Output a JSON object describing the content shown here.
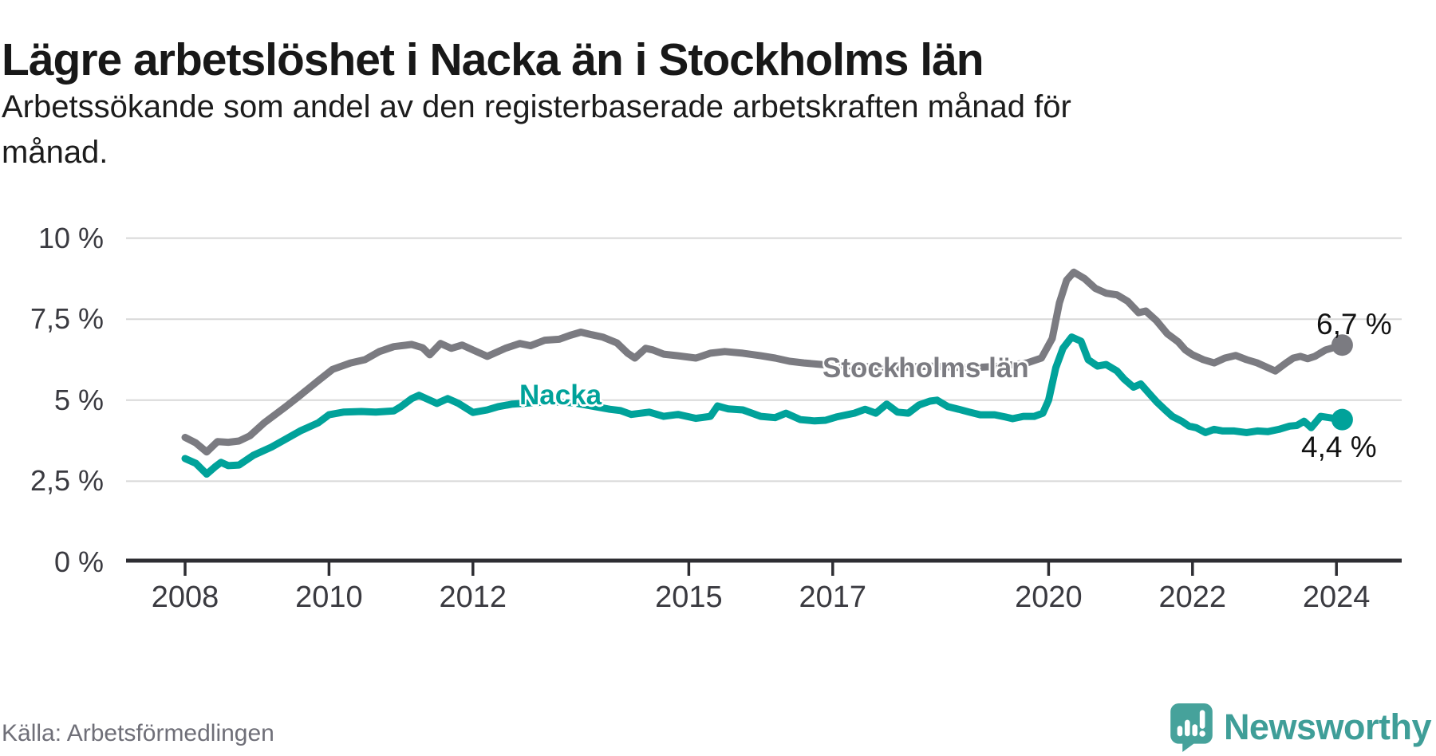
{
  "title": "Lägre arbetslöshet i Nacka än i Stockholms län",
  "subtitle_lines": [
    "Arbetssökande som andel av den registerbaserade arbetskraften månad för",
    "månad."
  ],
  "source": "Källa: Arbetsförmedlingen",
  "logo": {
    "text": "Newsworthy",
    "icon": "newsworthy-speech-bubble-chart-icon",
    "color": "#3f9e98"
  },
  "colors": {
    "nacka": "#00a29a",
    "stockholm": "#7b7b81",
    "grid": "#d8d8d8",
    "axis": "#2e2e33",
    "text": "#3a3a40"
  },
  "chart_data": {
    "type": "line",
    "title": "Lägre arbetslöshet i Nacka än i Stockholms län",
    "subtitle": "Arbetssökande som andel av den registerbaserade arbetskraften månad för månad.",
    "unit": "%",
    "ylim": [
      0,
      10
    ],
    "xlim": [
      2008,
      2024.3
    ],
    "grid": "horizontal",
    "y_ticks": [
      {
        "label": "10 %",
        "value": 10
      },
      {
        "label": "7,5 %",
        "value": 7.5
      },
      {
        "label": "5 %",
        "value": 5
      },
      {
        "label": "2,5 %",
        "value": 2.5
      },
      {
        "label": "0 %",
        "value": 0
      }
    ],
    "x_ticks": [
      {
        "label": "2008",
        "value": 2008
      },
      {
        "label": "2010",
        "value": 2010
      },
      {
        "label": "2012",
        "value": 2012
      },
      {
        "label": "2015",
        "value": 2015
      },
      {
        "label": "2017",
        "value": 2017
      },
      {
        "label": "2020",
        "value": 2020
      },
      {
        "label": "2022",
        "value": 2022
      },
      {
        "label": "2024",
        "value": 2024
      }
    ],
    "series": [
      {
        "name": "Stockholms län",
        "color": "#7b7b81",
        "end_value": 6.7,
        "end_label": "6,7 %",
        "points": [
          [
            2008.0,
            3.85
          ],
          [
            2008.15,
            3.68
          ],
          [
            2008.3,
            3.4
          ],
          [
            2008.45,
            3.72
          ],
          [
            2008.6,
            3.7
          ],
          [
            2008.75,
            3.74
          ],
          [
            2008.9,
            3.9
          ],
          [
            2009.1,
            4.3
          ],
          [
            2009.4,
            4.8
          ],
          [
            2009.6,
            5.15
          ],
          [
            2009.85,
            5.6
          ],
          [
            2010.05,
            5.95
          ],
          [
            2010.3,
            6.15
          ],
          [
            2010.5,
            6.25
          ],
          [
            2010.7,
            6.5
          ],
          [
            2010.9,
            6.65
          ],
          [
            2011.15,
            6.72
          ],
          [
            2011.3,
            6.62
          ],
          [
            2011.4,
            6.4
          ],
          [
            2011.55,
            6.75
          ],
          [
            2011.7,
            6.6
          ],
          [
            2011.85,
            6.7
          ],
          [
            2012.0,
            6.55
          ],
          [
            2012.2,
            6.35
          ],
          [
            2012.45,
            6.6
          ],
          [
            2012.65,
            6.75
          ],
          [
            2012.8,
            6.68
          ],
          [
            2013.0,
            6.85
          ],
          [
            2013.2,
            6.88
          ],
          [
            2013.35,
            7.0
          ],
          [
            2013.5,
            7.1
          ],
          [
            2013.65,
            7.02
          ],
          [
            2013.8,
            6.95
          ],
          [
            2014.0,
            6.77
          ],
          [
            2014.15,
            6.45
          ],
          [
            2014.25,
            6.3
          ],
          [
            2014.4,
            6.6
          ],
          [
            2014.5,
            6.55
          ],
          [
            2014.65,
            6.42
          ],
          [
            2014.85,
            6.37
          ],
          [
            2015.1,
            6.3
          ],
          [
            2015.3,
            6.45
          ],
          [
            2015.5,
            6.5
          ],
          [
            2015.75,
            6.45
          ],
          [
            2016.0,
            6.37
          ],
          [
            2016.2,
            6.3
          ],
          [
            2016.4,
            6.2
          ],
          [
            2016.6,
            6.15
          ],
          [
            2016.85,
            6.1
          ],
          [
            2017.3,
            6.05
          ],
          [
            2017.8,
            6.0
          ],
          [
            2018.35,
            6.05
          ],
          [
            2018.9,
            6.0
          ],
          [
            2019.35,
            6.05
          ],
          [
            2019.7,
            6.15
          ],
          [
            2019.9,
            6.3
          ],
          [
            2020.05,
            6.9
          ],
          [
            2020.15,
            8.0
          ],
          [
            2020.25,
            8.7
          ],
          [
            2020.35,
            8.95
          ],
          [
            2020.5,
            8.75
          ],
          [
            2020.65,
            8.45
          ],
          [
            2020.8,
            8.3
          ],
          [
            2020.95,
            8.25
          ],
          [
            2021.1,
            8.05
          ],
          [
            2021.25,
            7.7
          ],
          [
            2021.35,
            7.75
          ],
          [
            2021.5,
            7.45
          ],
          [
            2021.65,
            7.05
          ],
          [
            2021.8,
            6.8
          ],
          [
            2021.9,
            6.55
          ],
          [
            2022.0,
            6.4
          ],
          [
            2022.15,
            6.25
          ],
          [
            2022.3,
            6.15
          ],
          [
            2022.45,
            6.3
          ],
          [
            2022.6,
            6.38
          ],
          [
            2022.75,
            6.25
          ],
          [
            2022.9,
            6.15
          ],
          [
            2023.05,
            6.0
          ],
          [
            2023.15,
            5.9
          ],
          [
            2023.3,
            6.15
          ],
          [
            2023.4,
            6.3
          ],
          [
            2023.5,
            6.35
          ],
          [
            2023.6,
            6.28
          ],
          [
            2023.7,
            6.35
          ],
          [
            2023.85,
            6.55
          ],
          [
            2024.08,
            6.7
          ]
        ]
      },
      {
        "name": "Nacka",
        "color": "#00a29a",
        "end_value": 4.4,
        "end_label": "4,4 %",
        "points": [
          [
            2008.0,
            3.2
          ],
          [
            2008.15,
            3.05
          ],
          [
            2008.3,
            2.72
          ],
          [
            2008.42,
            2.95
          ],
          [
            2008.5,
            3.08
          ],
          [
            2008.6,
            2.98
          ],
          [
            2008.75,
            3.0
          ],
          [
            2008.95,
            3.3
          ],
          [
            2009.2,
            3.55
          ],
          [
            2009.4,
            3.8
          ],
          [
            2009.6,
            4.05
          ],
          [
            2009.85,
            4.3
          ],
          [
            2010.0,
            4.55
          ],
          [
            2010.2,
            4.63
          ],
          [
            2010.45,
            4.65
          ],
          [
            2010.65,
            4.63
          ],
          [
            2010.9,
            4.67
          ],
          [
            2011.0,
            4.8
          ],
          [
            2011.15,
            5.05
          ],
          [
            2011.25,
            5.15
          ],
          [
            2011.4,
            5.0
          ],
          [
            2011.5,
            4.9
          ],
          [
            2011.65,
            5.05
          ],
          [
            2011.8,
            4.9
          ],
          [
            2012.0,
            4.62
          ],
          [
            2012.2,
            4.7
          ],
          [
            2012.35,
            4.8
          ],
          [
            2012.55,
            4.88
          ],
          [
            2012.8,
            4.92
          ],
          [
            2013.1,
            4.95
          ],
          [
            2013.4,
            4.92
          ],
          [
            2013.7,
            4.8
          ],
          [
            2013.9,
            4.72
          ],
          [
            2014.05,
            4.68
          ],
          [
            2014.2,
            4.56
          ],
          [
            2014.45,
            4.63
          ],
          [
            2014.65,
            4.5
          ],
          [
            2014.85,
            4.56
          ],
          [
            2015.1,
            4.44
          ],
          [
            2015.3,
            4.5
          ],
          [
            2015.4,
            4.82
          ],
          [
            2015.55,
            4.73
          ],
          [
            2015.75,
            4.7
          ],
          [
            2016.0,
            4.5
          ],
          [
            2016.2,
            4.46
          ],
          [
            2016.35,
            4.6
          ],
          [
            2016.55,
            4.4
          ],
          [
            2016.75,
            4.36
          ],
          [
            2016.9,
            4.38
          ],
          [
            2017.05,
            4.48
          ],
          [
            2017.3,
            4.6
          ],
          [
            2017.45,
            4.72
          ],
          [
            2017.6,
            4.6
          ],
          [
            2017.75,
            4.88
          ],
          [
            2017.9,
            4.63
          ],
          [
            2018.05,
            4.6
          ],
          [
            2018.2,
            4.85
          ],
          [
            2018.35,
            4.97
          ],
          [
            2018.45,
            5.0
          ],
          [
            2018.6,
            4.8
          ],
          [
            2018.75,
            4.72
          ],
          [
            2018.9,
            4.63
          ],
          [
            2019.05,
            4.55
          ],
          [
            2019.25,
            4.55
          ],
          [
            2019.4,
            4.48
          ],
          [
            2019.5,
            4.43
          ],
          [
            2019.65,
            4.5
          ],
          [
            2019.8,
            4.5
          ],
          [
            2019.92,
            4.6
          ],
          [
            2020.0,
            5.0
          ],
          [
            2020.1,
            6.0
          ],
          [
            2020.2,
            6.6
          ],
          [
            2020.32,
            6.95
          ],
          [
            2020.45,
            6.82
          ],
          [
            2020.55,
            6.25
          ],
          [
            2020.68,
            6.05
          ],
          [
            2020.8,
            6.1
          ],
          [
            2020.95,
            5.9
          ],
          [
            2021.05,
            5.65
          ],
          [
            2021.18,
            5.4
          ],
          [
            2021.28,
            5.5
          ],
          [
            2021.4,
            5.2
          ],
          [
            2021.5,
            4.95
          ],
          [
            2021.62,
            4.7
          ],
          [
            2021.72,
            4.5
          ],
          [
            2021.85,
            4.35
          ],
          [
            2021.95,
            4.2
          ],
          [
            2022.05,
            4.15
          ],
          [
            2022.18,
            4.0
          ],
          [
            2022.3,
            4.1
          ],
          [
            2022.42,
            4.05
          ],
          [
            2022.58,
            4.05
          ],
          [
            2022.75,
            4.0
          ],
          [
            2022.9,
            4.05
          ],
          [
            2023.05,
            4.03
          ],
          [
            2023.2,
            4.1
          ],
          [
            2023.35,
            4.2
          ],
          [
            2023.45,
            4.22
          ],
          [
            2023.55,
            4.35
          ],
          [
            2023.65,
            4.15
          ],
          [
            2023.78,
            4.5
          ],
          [
            2024.08,
            4.4
          ]
        ]
      }
    ],
    "annotations": {
      "nacka_line_label": "Nacka",
      "stockholm_line_label": "Stockholms län",
      "stockholm_end_label": "6,7 %",
      "nacka_end_label": "4,4 %"
    },
    "legend_position": "inline-labels"
  }
}
